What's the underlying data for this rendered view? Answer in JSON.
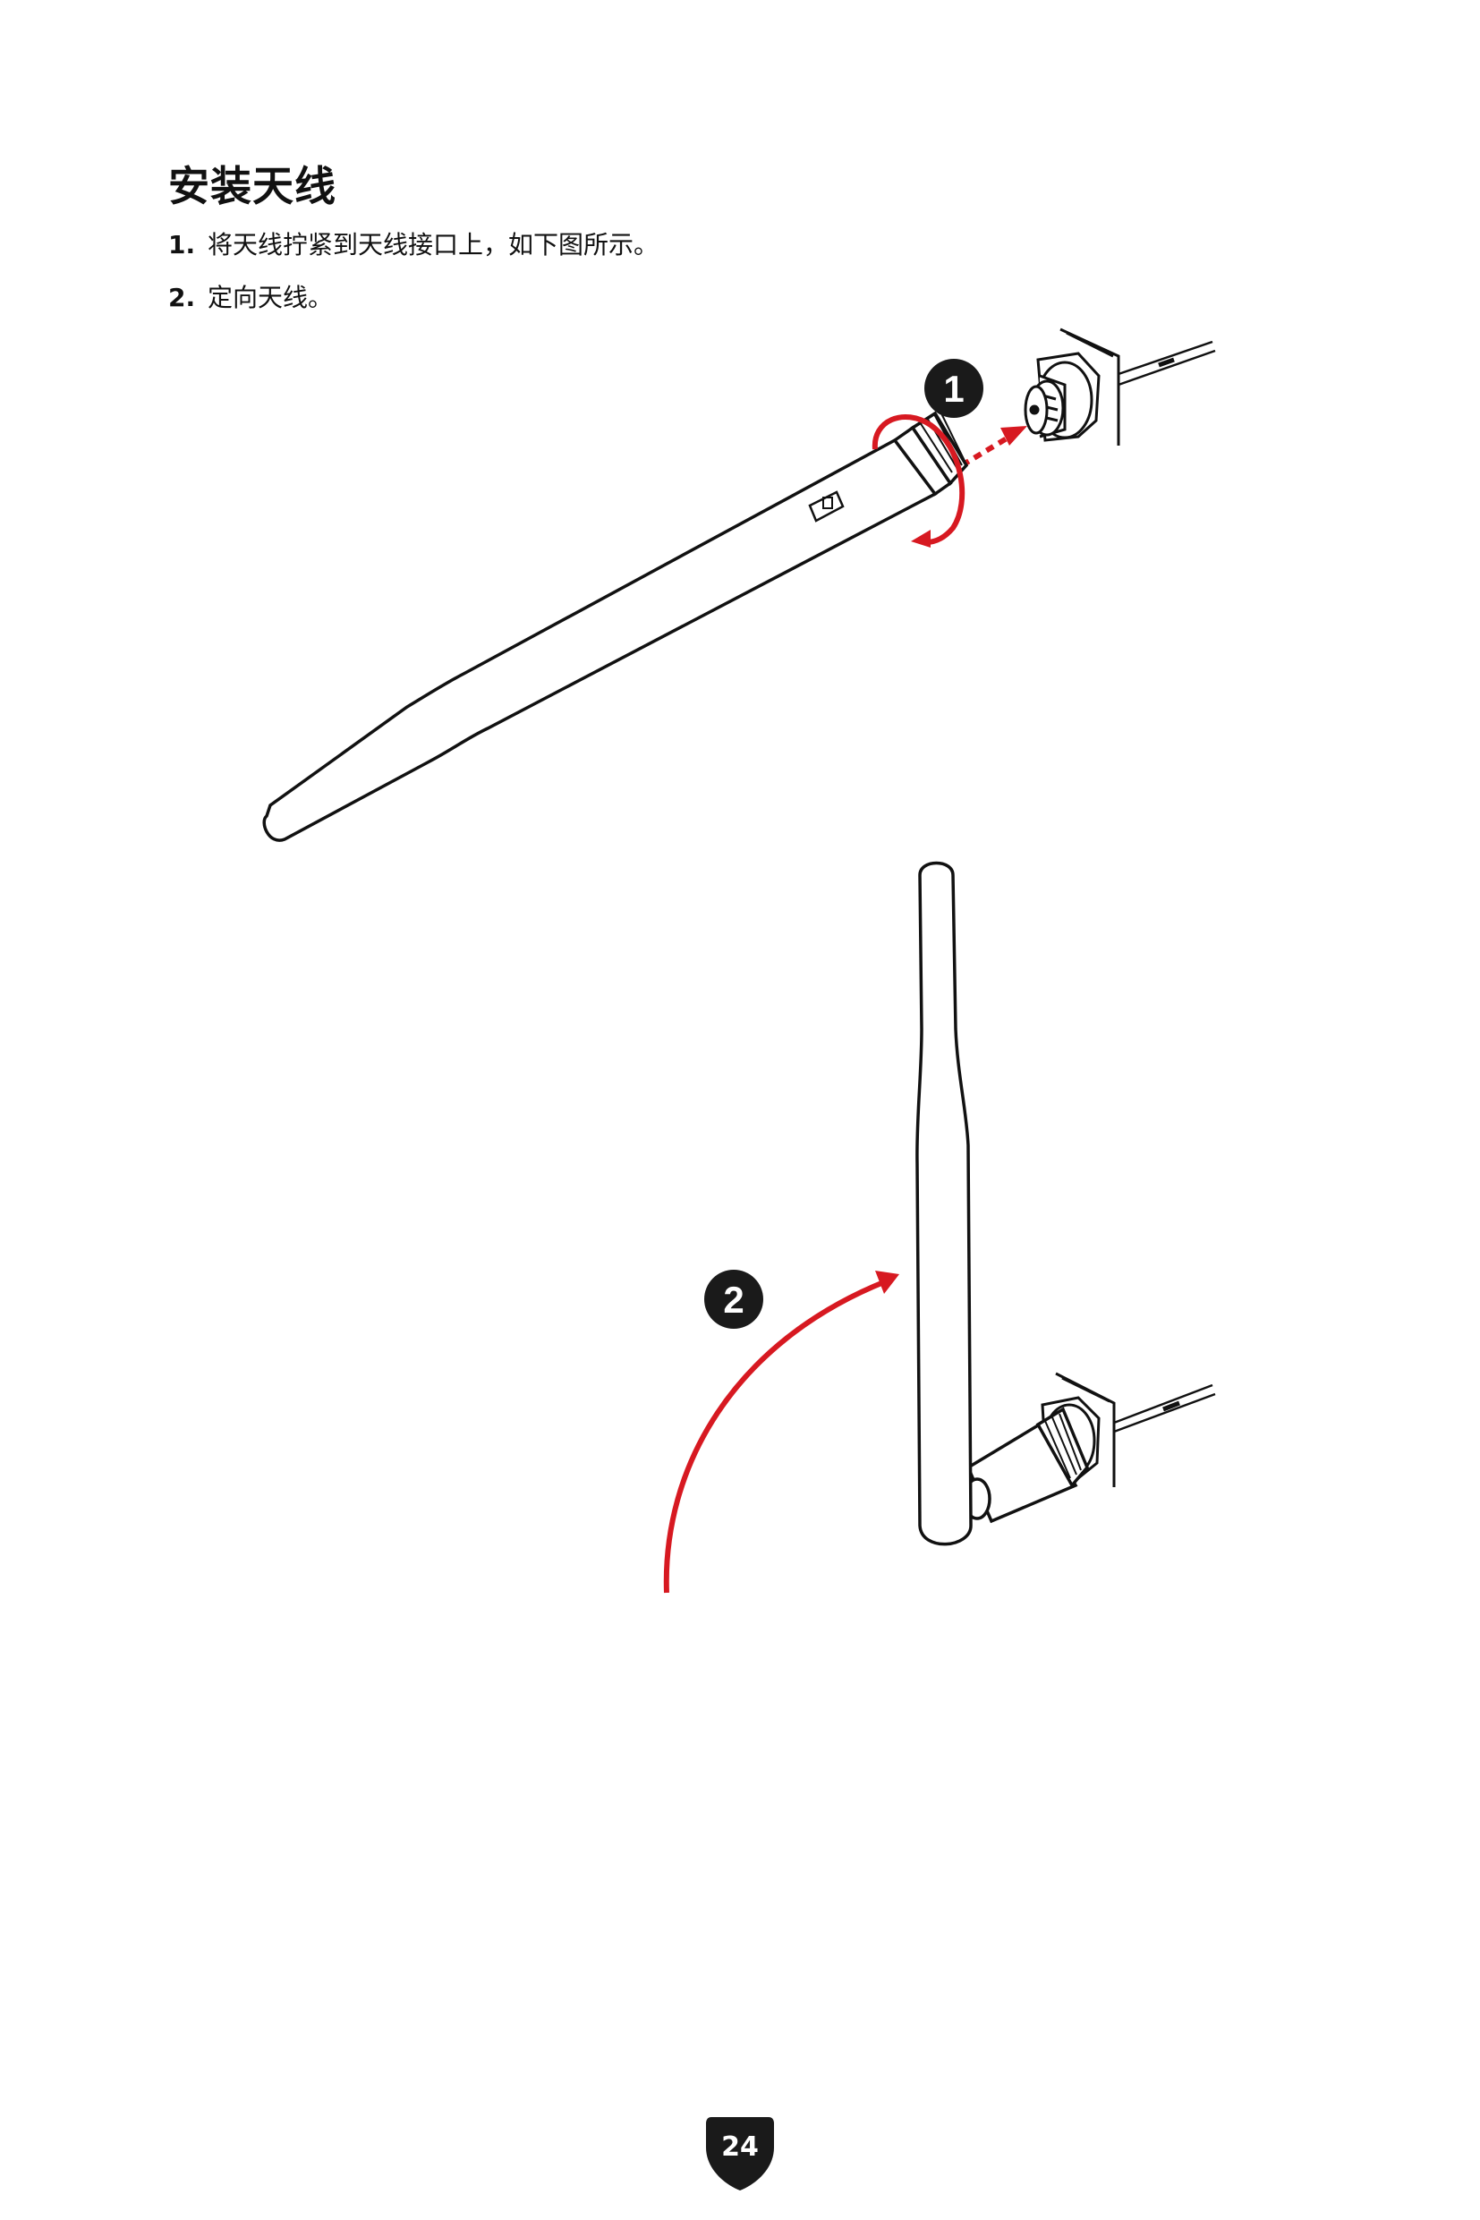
{
  "title": "安装天线",
  "steps": [
    {
      "number": "1.",
      "text": "将天线拧紧到天线接口上，如下图所示。"
    },
    {
      "number": "2.",
      "text": "定向天线。"
    }
  ],
  "callouts": [
    "1",
    "2"
  ],
  "page_number": "24",
  "colors": {
    "accent": "#d71921",
    "ink": "#111111",
    "badge": "#1a1a1a"
  }
}
